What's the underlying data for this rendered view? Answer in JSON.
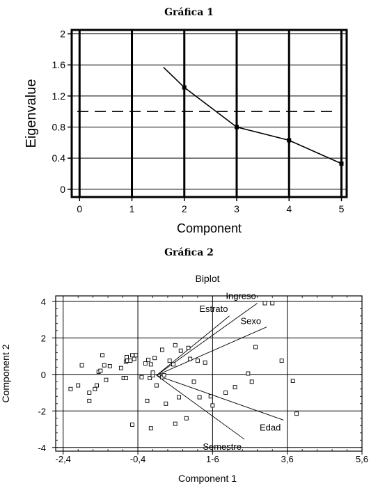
{
  "figure1": {
    "heading": "Gráfica 1",
    "chart_data": {
      "type": "line",
      "title": "",
      "xlabel": "Component",
      "ylabel": "Eigenvalue",
      "xlim": [
        -0.15,
        5.1
      ],
      "ylim": [
        -0.1,
        2.05
      ],
      "x_ticks": [
        0,
        1,
        2,
        3,
        4,
        5
      ],
      "y_ticks": [
        0,
        0.4,
        0.8,
        1.2,
        1.6,
        2
      ],
      "y_tick_labels": [
        "0",
        "0.4",
        "0.8",
        "1.2",
        "1.6",
        "2"
      ],
      "reference_line": {
        "y": 1.0,
        "style": "dashed"
      },
      "grid": true,
      "series": [
        {
          "x": [
            1.6,
            2,
            3,
            4,
            5
          ],
          "y": [
            1.57,
            1.31,
            0.8,
            0.63,
            0.33
          ],
          "markers": [
            false,
            true,
            true,
            true,
            true
          ]
        }
      ]
    }
  },
  "figure2": {
    "heading": "Gráfica 2",
    "chart_data": {
      "type": "scatter",
      "title": "Biplot",
      "xlabel": "Component 1",
      "ylabel": "Component 2",
      "xlim": [
        -2.6,
        5.6
      ],
      "ylim": [
        -4.2,
        4.3
      ],
      "x_ticks": [
        -2.4,
        -0.4,
        1.6,
        3.6,
        5.6
      ],
      "x_tick_labels": [
        "-2,4",
        "-0,4",
        "1-6",
        "3,6",
        "5,6"
      ],
      "y_ticks": [
        -4,
        -2,
        0,
        2,
        4
      ],
      "y_tick_labels": [
        "-4",
        "-2",
        "0",
        "2",
        "4"
      ],
      "grid": true,
      "vector_origin": [
        0.1,
        -0.05
      ],
      "vectors": [
        {
          "name": "Estrato",
          "x": 2.05,
          "y": 3.2
        },
        {
          "name": "Ingreso",
          "x": 2.8,
          "y": 3.9
        },
        {
          "name": "Sexo",
          "x": 3.05,
          "y": 2.6
        },
        {
          "name": "Edad",
          "x": 3.5,
          "y": -2.5
        },
        {
          "name": "Semestre",
          "x": 2.45,
          "y": -3.55
        }
      ],
      "points": [
        [
          3.2,
          3.9
        ],
        [
          -2.2,
          -0.8
        ],
        [
          -2.0,
          -0.6
        ],
        [
          -1.9,
          0.5
        ],
        [
          -1.7,
          -1.0
        ],
        [
          -1.55,
          -0.8
        ],
        [
          -1.5,
          -0.6
        ],
        [
          -1.45,
          0.15
        ],
        [
          -1.7,
          -1.45
        ],
        [
          -1.4,
          0.2
        ],
        [
          -1.35,
          1.05
        ],
        [
          -1.3,
          0.5
        ],
        [
          -1.25,
          -0.3
        ],
        [
          -1.15,
          0.45
        ],
        [
          -0.85,
          0.35
        ],
        [
          -0.78,
          -0.2
        ],
        [
          -0.72,
          -0.2
        ],
        [
          -0.72,
          0.7
        ],
        [
          -0.7,
          0.95
        ],
        [
          -0.68,
          0.75
        ],
        [
          -0.6,
          0.75
        ],
        [
          -0.55,
          1.05
        ],
        [
          -0.55,
          -2.75
        ],
        [
          -0.5,
          0.85
        ],
        [
          -0.45,
          1.05
        ],
        [
          -0.3,
          -0.15
        ],
        [
          -0.2,
          0.6
        ],
        [
          -0.12,
          0.8
        ],
        [
          -0.05,
          0.55
        ],
        [
          -0.08,
          -0.2
        ],
        [
          -0.15,
          -1.45
        ],
        [
          -0.05,
          -2.95
        ],
        [
          0.05,
          0.9
        ],
        [
          0.0,
          -0.05
        ],
        [
          0.0,
          0.1
        ],
        [
          0.1,
          -0.6
        ],
        [
          0.25,
          1.35
        ],
        [
          0.25,
          -0.15
        ],
        [
          0.3,
          -0.05
        ],
        [
          0.35,
          -1.6
        ],
        [
          0.45,
          0.75
        ],
        [
          0.55,
          0.55
        ],
        [
          0.6,
          1.6
        ],
        [
          0.6,
          -2.7
        ],
        [
          0.7,
          -1.25
        ],
        [
          0.75,
          1.3
        ],
        [
          0.9,
          -2.4
        ],
        [
          0.95,
          1.45
        ],
        [
          1.0,
          0.85
        ],
        [
          1.1,
          -0.4
        ],
        [
          1.2,
          0.75
        ],
        [
          1.25,
          -1.25
        ],
        [
          1.4,
          0.65
        ],
        [
          1.55,
          -1.2
        ],
        [
          1.6,
          -1.7
        ],
        [
          1.95,
          -1.0
        ],
        [
          2.2,
          -0.7
        ],
        [
          2.55,
          0.05
        ],
        [
          2.65,
          -0.4
        ],
        [
          2.75,
          1.5
        ],
        [
          3.0,
          3.9
        ],
        [
          3.45,
          0.75
        ],
        [
          3.75,
          -0.35
        ],
        [
          3.85,
          -2.15
        ]
      ]
    }
  }
}
